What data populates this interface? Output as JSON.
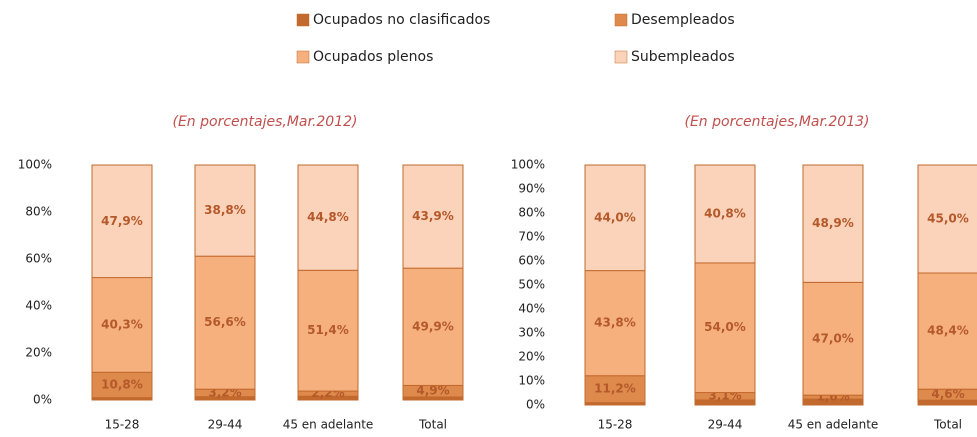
{
  "chart_data": [
    {
      "type": "stacked_bar",
      "subtitle": "(En porcentajes,Mar.2012)",
      "categories": [
        "15-28",
        "29-44",
        "45 en adelante",
        "Total"
      ],
      "ylim": [
        0,
        100
      ],
      "yticks": [
        {
          "value": 0,
          "label": "0%"
        },
        {
          "value": 20,
          "label": "20%"
        },
        {
          "value": 40,
          "label": "40%"
        },
        {
          "value": 60,
          "label": "60%"
        },
        {
          "value": 80,
          "label": "80%"
        },
        {
          "value": 100,
          "label": "100%"
        }
      ],
      "series": [
        {
          "name": "Ocupados no clasificados",
          "color": "#c26a2e",
          "values": [
            1.0,
            1.4,
            1.6,
            1.3
          ]
        },
        {
          "name": "Desempleados",
          "color": "#dd8a4c",
          "values": [
            10.8,
            3.2,
            2.2,
            4.9
          ],
          "value_labels": [
            "10,8%",
            "3,2%",
            "2,2%",
            "4,9%"
          ]
        },
        {
          "name": "Ocupados plenos",
          "color": "#f5b07e",
          "values": [
            40.3,
            56.6,
            51.4,
            49.9
          ],
          "value_labels": [
            "40,3%",
            "56,6%",
            "51,4%",
            "49,9%"
          ]
        },
        {
          "name": "Subempleados",
          "color": "#fad3ba",
          "values": [
            47.9,
            38.8,
            44.8,
            43.9
          ],
          "value_labels": [
            "47,9%",
            "38,8%",
            "44,8%",
            "43,9%"
          ]
        }
      ]
    },
    {
      "type": "stacked_bar",
      "subtitle": "(En porcentajes,Mar.2013)",
      "categories": [
        "15-28",
        "29-44",
        "45 en adelante",
        "Total"
      ],
      "ylim": [
        0,
        100
      ],
      "yticks": [
        {
          "value": 0,
          "label": "0%"
        },
        {
          "value": 10,
          "label": "10%"
        },
        {
          "value": 20,
          "label": "20%"
        },
        {
          "value": 30,
          "label": "30%"
        },
        {
          "value": 40,
          "label": "40%"
        },
        {
          "value": 50,
          "label": "50%"
        },
        {
          "value": 60,
          "label": "60%"
        },
        {
          "value": 70,
          "label": "70%"
        },
        {
          "value": 80,
          "label": "80%"
        },
        {
          "value": 90,
          "label": "90%"
        },
        {
          "value": 100,
          "label": "100%"
        }
      ],
      "series": [
        {
          "name": "Ocupados no clasificados",
          "color": "#c26a2e",
          "values": [
            1.0,
            2.1,
            2.5,
            2.0
          ]
        },
        {
          "name": "Desempleados",
          "color": "#dd8a4c",
          "values": [
            11.2,
            3.1,
            1.6,
            4.6
          ],
          "value_labels": [
            "11,2%",
            "3,1%",
            "1,6%",
            "4,6%"
          ]
        },
        {
          "name": "Ocupados plenos",
          "color": "#f5b07e",
          "values": [
            43.8,
            54.0,
            47.0,
            48.4
          ],
          "value_labels": [
            "43,8%",
            "54,0%",
            "47,0%",
            "48,4%"
          ]
        },
        {
          "name": "Subempleados",
          "color": "#fad3ba",
          "values": [
            44.0,
            40.8,
            48.9,
            45.0
          ],
          "value_labels": [
            "44,0%",
            "40,8%",
            "48,9%",
            "45,0%"
          ]
        }
      ]
    }
  ]
}
